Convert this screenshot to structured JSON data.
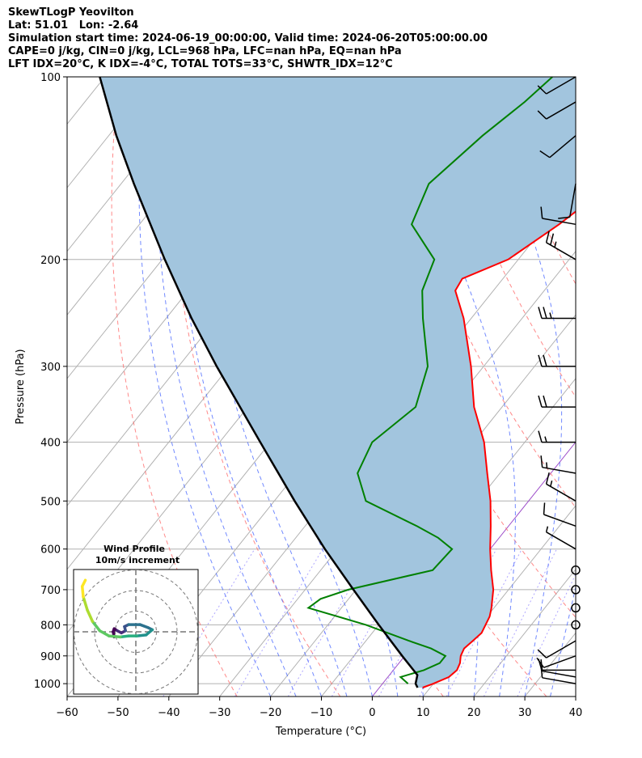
{
  "header": {
    "line1": "SkewTLogP Yeovilton",
    "line2": "Lat: 51.01   Lon: -2.64",
    "line3": "Simulation start time: 2024-06-19_00:00:00, Valid time: 2024-06-20T05:00:00.00",
    "line4": "CAPE=0 j/kg, CIN=0 j/kg, LCL=968 hPa, LFC=nan hPa, EQ=nan hPa",
    "line5": "LFT IDX=20°C, K IDX=-4°C, TOTAL TOTS=33°C, SHWTR_IDX=12°C"
  },
  "colors": {
    "temperature": "#ff0000",
    "dewpoint": "#008000",
    "parcel": "#000000",
    "cape_fill": "#a2c5de",
    "dry_adiabat": "#ff6b6b",
    "moist_adiabat": "#4d6bff",
    "mixing_ratio": "#7a6bff",
    "isotherm": "#b0b0b0",
    "zero_isotherm": "#9b49c8"
  },
  "chart_data": [
    {
      "type": "line",
      "name": "skewt-logp",
      "xlabel": "Temperature (°C)",
      "ylabel": "Pressure (hPa)",
      "xlim": [
        -60,
        40
      ],
      "ylim": [
        1050,
        100
      ],
      "yscale": "log",
      "x_ticks": [
        -60,
        -50,
        -40,
        -30,
        -20,
        -10,
        0,
        10,
        20,
        30,
        40
      ],
      "y_ticks": [
        1000,
        900,
        800,
        700,
        600,
        500,
        400,
        300,
        200,
        100
      ],
      "grid": true,
      "series": [
        {
          "role": "temperature",
          "pressure": [
            1015,
            1000,
            975,
            950,
            925,
            900,
            875,
            850,
            825,
            800,
            775,
            750,
            700,
            650,
            600,
            550,
            500,
            450,
            400,
            350,
            300,
            250,
            225,
            215,
            200,
            175,
            150,
            125,
            110,
            100
          ],
          "values": [
            8.5,
            10.0,
            12.0,
            12.5,
            12.0,
            11.0,
            10.5,
            11.0,
            11.5,
            11.0,
            10.5,
            9.5,
            7.0,
            3.5,
            0.0,
            -3.5,
            -7.5,
            -12.5,
            -18.0,
            -25.5,
            -32.5,
            -41.5,
            -47.5,
            -48.0,
            -42.0,
            -37.5,
            -33.5,
            -30.5,
            -28.5,
            -27.5
          ]
        },
        {
          "role": "dewpoint",
          "pressure": [
            1000,
            975,
            950,
            925,
            900,
            875,
            850,
            800,
            750,
            725,
            700,
            650,
            600,
            575,
            550,
            500,
            450,
            400,
            350,
            300,
            250,
            225,
            200,
            175,
            150,
            125,
            110,
            100
          ],
          "values": [
            5.0,
            2.5,
            6.0,
            8.0,
            8.0,
            4.0,
            -1.5,
            -12.5,
            -26.5,
            -25.5,
            -21.5,
            -8.0,
            -7.5,
            -12.0,
            -18.0,
            -32.0,
            -38.0,
            -40.0,
            -37.0,
            -41.0,
            -49.5,
            -54.0,
            -56.5,
            -66.5,
            -69.5,
            -66.5,
            -63.5,
            -62.0
          ]
        },
        {
          "role": "parcel",
          "pressure": [
            1015,
            1000,
            968,
            900,
            800,
            700,
            600,
            500,
            400,
            300,
            250,
            200,
            150,
            125,
            100
          ],
          "values": [
            7.5,
            6.5,
            5.5,
            -0.5,
            -10.0,
            -20.5,
            -32.5,
            -46.0,
            -62.0,
            -82.5,
            -95.0,
            -109.5,
            -127.5,
            -138.5,
            -151.0
          ]
        }
      ],
      "wind_barbs": {
        "pressure": [
          1000,
          975,
          950,
          900,
          850,
          800,
          750,
          700,
          650,
          600,
          550,
          500,
          450,
          400,
          350,
          300,
          250,
          200,
          175,
          150,
          125,
          110,
          100
        ],
        "speed_kt": [
          10,
          10,
          10,
          10,
          10,
          0,
          0,
          0,
          0,
          5,
          10,
          15,
          15,
          15,
          20,
          20,
          25,
          25,
          10,
          10,
          10,
          10,
          10
        ],
        "direction_deg": [
          280,
          280,
          270,
          250,
          240,
          0,
          0,
          0,
          0,
          300,
          290,
          300,
          280,
          270,
          270,
          270,
          270,
          300,
          280,
          190,
          230,
          240,
          240
        ],
        "calm_markers_at": [
          1000,
          800,
          730,
          640
        ]
      }
    },
    {
      "type": "line",
      "name": "hodograph",
      "title": "Wind Profile",
      "subtitle": "10m/s increment",
      "rings_mps": [
        10,
        20,
        30
      ],
      "u": [
        -10.5,
        -11.0,
        -10.5,
        -9.0,
        -7.0,
        -5.0,
        -5.5,
        -3.5,
        2.0,
        6.0,
        8.0,
        5.0,
        0.5,
        -3.5,
        -7.5,
        -13.0,
        -17.5,
        -21.0,
        -23.5,
        -25.5,
        -26.0,
        -24.5
      ],
      "v": [
        -2.5,
        0.0,
        1.5,
        0.5,
        -0.5,
        0.5,
        2.5,
        3.5,
        3.5,
        2.0,
        1.0,
        -1.5,
        -2.0,
        -2.0,
        -2.5,
        -2.0,
        0.5,
        5.0,
        10.5,
        17.0,
        22.0,
        25.0
      ]
    }
  ]
}
